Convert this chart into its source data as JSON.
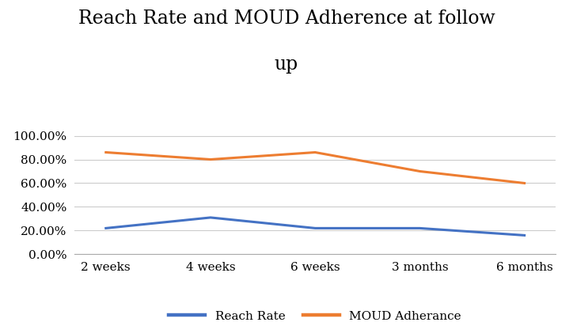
{
  "title_line1": "Reach Rate and MOUD Adherence at follow",
  "title_line2": "up",
  "categories": [
    "2 weeks",
    "4 weeks",
    "6 weeks",
    "3 months",
    "6 months"
  ],
  "reach_rate": [
    0.22,
    0.31,
    0.22,
    0.22,
    0.16
  ],
  "moud_adherance": [
    0.86,
    0.8,
    0.86,
    0.7,
    0.6
  ],
  "reach_rate_color": "#4472C4",
  "moud_color": "#ED7D31",
  "ylim": [
    0.0,
    1.1
  ],
  "yticks": [
    0.0,
    0.2,
    0.4,
    0.6,
    0.8,
    1.0
  ],
  "ytick_labels": [
    "0.00%",
    "20.00%",
    "40.00%",
    "60.00%",
    "80.00%",
    "100.00%"
  ],
  "legend_reach": "Reach Rate",
  "legend_moud": "MOUD Adherance",
  "title_fontsize": 17,
  "axis_fontsize": 11,
  "legend_fontsize": 11,
  "line_width": 2.2,
  "background_color": "#ffffff",
  "grid_color": "#cccccc"
}
